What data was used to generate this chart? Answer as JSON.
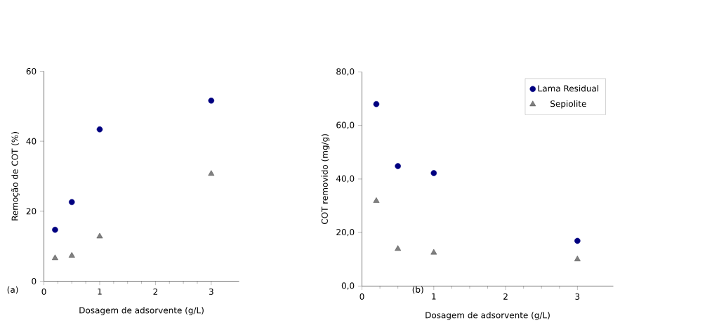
{
  "chart_data": [
    {
      "type": "scatter",
      "xlabel": "Dosagem de adsorvente (g/L)",
      "ylabel": "Remoção de COT (%)",
      "annotations": [
        "(a)"
      ],
      "xlim": [
        0,
        3.5
      ],
      "xticks": [
        0,
        1,
        2,
        3
      ],
      "ylim": [
        0,
        60
      ],
      "yticks": [
        0,
        20,
        40,
        60
      ],
      "legend": false,
      "series": [
        {
          "color": "#000080",
          "marker": "circle",
          "x": [
            0.2,
            0.5,
            1,
            3
          ],
          "values": [
            14.7,
            22.6,
            43.4,
            51.6
          ]
        },
        {
          "color": "#808080",
          "marker": "triangle",
          "x": [
            0.2,
            0.5,
            1,
            3
          ],
          "values": [
            6.6,
            7.3,
            12.8,
            30.7
          ]
        }
      ]
    },
    {
      "type": "scatter",
      "xlabel": "Dosagem de adsorvente (g/L)",
      "ylabel": "COT removido (mg/g)",
      "annotations": [
        "(b)"
      ],
      "xlim": [
        0,
        3.5
      ],
      "xticks": [
        0,
        1,
        2,
        3
      ],
      "ylim": [
        0,
        80
      ],
      "yticks": [
        {
          "value": 0,
          "label": "0,0"
        },
        {
          "value": 20,
          "label": "20,0"
        },
        {
          "value": 40,
          "label": "40,0"
        },
        {
          "value": 60,
          "label": "60,0"
        },
        {
          "value": 80,
          "label": "80,0"
        }
      ],
      "legend": "top right",
      "series": [
        {
          "name": "Lama Residual",
          "color": "#000080",
          "marker": "circle",
          "x": [
            0.2,
            0.5,
            1,
            3
          ],
          "values": [
            68.0,
            44.8,
            42.2,
            16.9
          ]
        },
        {
          "name": "Sepiolite",
          "color": "#808080",
          "marker": "triangle",
          "x": [
            0.2,
            0.5,
            1,
            3
          ],
          "values": [
            31.8,
            13.9,
            12.5,
            10.0
          ]
        }
      ]
    }
  ]
}
